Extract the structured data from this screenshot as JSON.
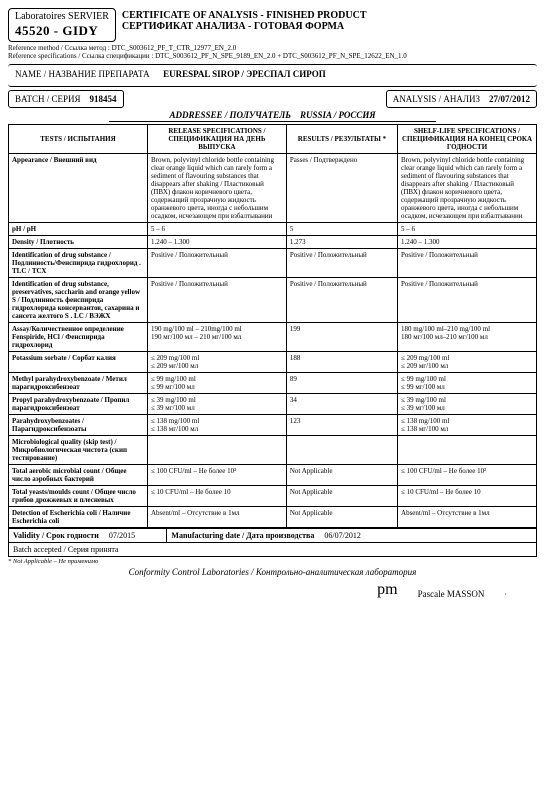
{
  "lab": {
    "line1": "Laboratoires SERVIER",
    "line2": "45520 - GIDY"
  },
  "cert": {
    "en": "CERTIFICATE OF ANALYSIS - FINISHED PRODUCT",
    "ru": "СЕРТИФИКАТ АНАЛИЗА - ГОТОВАЯ ФОРМА"
  },
  "refs": {
    "method_label": "Reference method / Ссылка метод :",
    "method": "DTC_S003612_PF_T_CTR_12977_EN_2.0",
    "spec_label": "Reference specifications / Ссылка спецификации :",
    "spec": "DTC_S003612_PF_N_SPE_9189_EN_2.0 + DTC_S003612_PF_N_SPE_12622_EN_1.0"
  },
  "name": {
    "label": "NAME / НАЗВАНИЕ ПРЕПАРАТА",
    "value": "EURESPAL SIROP / ЭРЕСПАЛ СИРОП"
  },
  "batch": {
    "label": "BATCH / СЕРИЯ",
    "value": "918454"
  },
  "analysis": {
    "label": "ANALYSIS / АНАЛИЗ",
    "value": "27/07/2012"
  },
  "addressee": {
    "label": "ADDRESSEE / ПОЛУЧАТЕЛЬ",
    "value": "RUSSIA / РОССИЯ"
  },
  "cols": {
    "tests": "TESTS / ИСПЫТАНИЯ",
    "release": "RELEASE SPECIFICATIONS / СПЕЦИФИКАЦИЯ НА ДЕНЬ ВЫПУСКА",
    "results": "RESULTS / РЕЗУЛЬТАТЫ *",
    "shelf": "SHELF-LIFE SPECIFICATIONS / СПЕЦИФИКАЦИЯ НА КОНЕЦ СРОКА ГОДНОСТИ"
  },
  "rows": [
    {
      "t": "Appearance / Внешний вид",
      "rel": "Brown, polyvinyl chloride bottle containing clear orange liquid which can rarely form a sediment of flavouring substances that disappears after shaking / Пластиковый (ПВХ) флакон коричневого цвета, содержащий прозрачную жидкость оранжевого цвета, иногда с небольшим осадком, исчезающем при взбалтывании",
      "res": "Passes / Подтверждено",
      "sh": "Brown, polyvinyl chloride bottle containing clear orange liquid which can rarely form a sediment of flavouring substances that disappears after shaking / Пластиковый (ПВХ) флакон коричневого цвета, содержащий прозрачную жидкость оранжевого цвета, иногда с небольшим осадком, исчезающем при взбалтывании"
    },
    {
      "t": "pH / pH",
      "rel": "5 – 6",
      "res": "5",
      "sh": "5 – 6"
    },
    {
      "t": "Density / Плотность",
      "rel": "1.240 – 1.300",
      "res": "1.273",
      "sh": "1.240 – 1.300"
    },
    {
      "t": "Identification of drug substance / Подлинность/Фенспирида гидрохлорид . TLC / ТСХ",
      "rel": "Positive / Положительный",
      "res": "Positive / Положительный",
      "sh": "Positive / Положительный"
    },
    {
      "t": "Identification of drug substance, preservatives, saccharin and orange yellow S / Подлинность фенспирида гидрохлорида консервантов, сахарина и сансета желтого S . LC / ВЭЖХ",
      "rel": "Positive / Положительный",
      "res": "Positive / Положительный",
      "sh": "Positive / Положительный"
    },
    {
      "t": "Assay/Количественное определение Fenspiride, HCl / Фенспирида гидрохлорид",
      "rel": "190 mg/100 ml – 210mg/100 ml\n190 мг/100 мл – 210 мг/100 мл",
      "res": "199",
      "sh": "180 mg/100 ml–210 mg/100 ml\n180 мг/100 мл–210 мг/100 мл"
    },
    {
      "t": "Potassium sorbate / Сорбат калия",
      "rel": "≤ 209 mg/100 ml\n≤ 209 мг/100 мл",
      "res": "188",
      "sh": "≤ 209 mg/100 ml\n≤ 209 мг/100 мл"
    },
    {
      "t": "Methyl parahydroxybenzoate / Метил парагидроксибензоат",
      "rel": "≤ 99 mg/100 ml\n≤ 99 мг/100 мл",
      "res": "89",
      "sh": "≤ 99 mg/100 ml\n≤ 99 мг/100 мл"
    },
    {
      "t": "Propyl parahydroxybenzoate / Пропил парагидроксибензоат",
      "rel": "≤ 39 mg/100 ml\n≤ 39 мг/100 мл",
      "res": "34",
      "sh": "≤ 39 mg/100 ml\n≤ 39 мг/100 мл"
    },
    {
      "t": "Parahydroxybenzoates / Парагидроксибензоаты",
      "rel": "≤ 138 mg/100 ml\n≤ 138 мг/100 мл",
      "res": "123",
      "sh": "≤ 138 mg/100 ml\n≤ 138 мг/100 мл"
    },
    {
      "t": "Microbiological quality (skip test) / Микробиологическая чистота (скип тестирование)",
      "rel": "",
      "res": "",
      "sh": ""
    },
    {
      "t": "Total aerobic microbial count / Общее число аэробных бактерий",
      "rel": "≤ 100 CFU/ml – Не более 10²",
      "res": "Not Applicable",
      "sh": "≤ 100 CFU/ml – Не более 10²"
    },
    {
      "t": "Total yeasts/moulds count / Общее число грибов дрожжевых и плесневых",
      "rel": "≤ 10 CFU/ml – Не более 10",
      "res": "Not Applicable",
      "sh": "≤ 10 CFU/ml – Не более 10"
    },
    {
      "t": "Detection of Escherichia coli / Наличие Escherichia coli",
      "rel": "Absent/ml – Отсутствие в 1мл",
      "res": "Not Applicable",
      "sh": "Absent/ml – Отсутствие в 1мл"
    }
  ],
  "validity": {
    "label": "Validity / Срок годности",
    "value": "07/2015"
  },
  "mfg": {
    "label": "Manufacturing date / Дата производства",
    "value": "06/07/2012"
  },
  "accepted": "Batch accepted / Серия принята",
  "footnote": "* Not Applicable – Не применимо",
  "footer": "Conformity Control Laboratories / Контрольно-аналитическая лаборатория",
  "signer": "Pascale MASSON"
}
